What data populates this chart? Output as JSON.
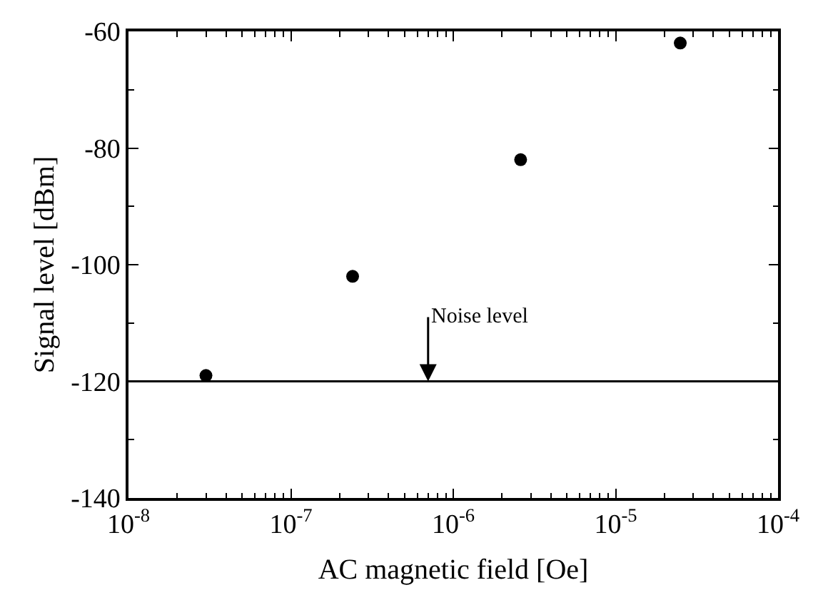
{
  "chart_data": {
    "type": "scatter",
    "xlabel": "AC magnetic field [Oe]",
    "ylabel": "Signal level [dBm]",
    "x": [
      3e-08,
      2.4e-07,
      2.6e-06,
      2.5e-05
    ],
    "values": [
      -119,
      -102,
      -82,
      -62
    ],
    "color": "#000000",
    "marker": "circle",
    "log": "x",
    "grid": false,
    "xlim": [
      1e-08,
      0.0001
    ],
    "xticks": [
      {
        "value": 1e-08,
        "label": "10$^{-8}$"
      },
      {
        "value": 1e-07,
        "label": "10$^{-7}$"
      },
      {
        "value": 1e-06,
        "label": "10$^{-6}$"
      },
      {
        "value": 1e-05,
        "label": "10$^{-5}$"
      },
      {
        "value": 0.0001,
        "label": "10$^{-4}$"
      }
    ],
    "ylim": [
      -140,
      -60
    ],
    "yticks": [
      -140,
      -120,
      -100,
      -80,
      -60
    ],
    "ref_lines": [
      {
        "axis": "y",
        "value": -120,
        "color": "#000000"
      }
    ],
    "annotations": [
      {
        "text": "Noise level",
        "x": 7e-07,
        "y": -120
      }
    ]
  }
}
